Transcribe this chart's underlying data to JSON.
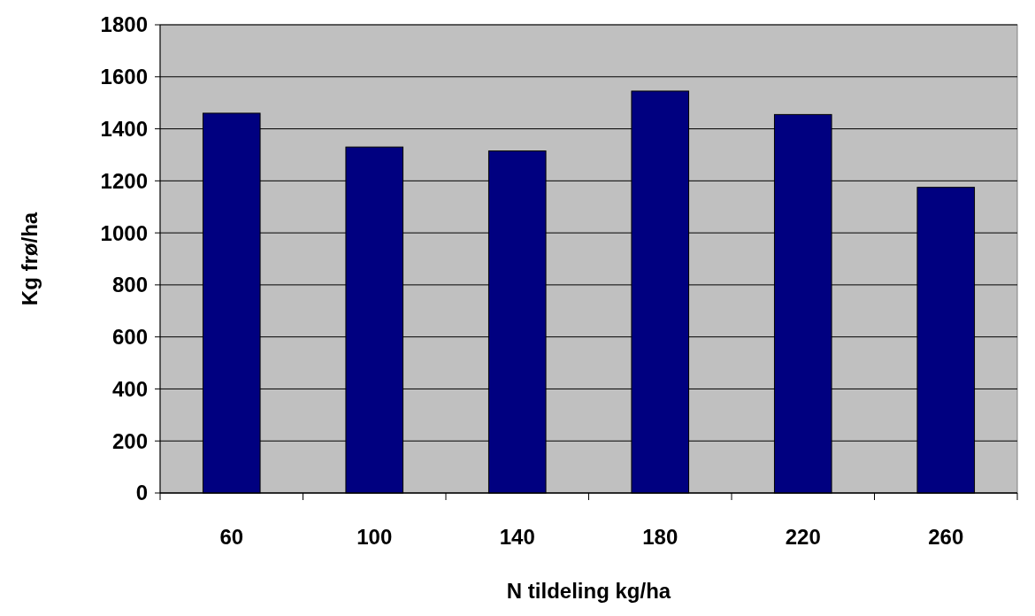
{
  "chart_data": {
    "type": "bar",
    "xlabel": "N tildeling kg/ha",
    "ylabel": "Kg frø/ha",
    "categories": [
      "60",
      "100",
      "140",
      "180",
      "220",
      "260"
    ],
    "values": [
      1460,
      1330,
      1315,
      1545,
      1455,
      1175
    ],
    "color": "#000080",
    "ylim": [
      0,
      1800
    ],
    "yticks": [
      0,
      200,
      400,
      600,
      800,
      1000,
      1200,
      1400,
      1600,
      1800
    ],
    "grid": "y"
  }
}
